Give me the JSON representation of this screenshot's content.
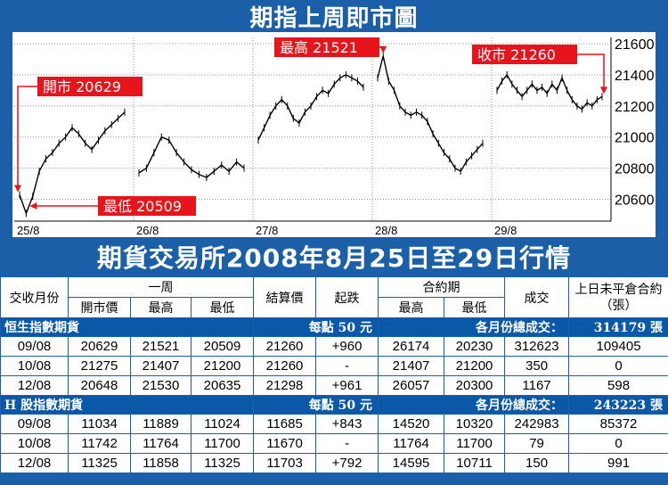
{
  "chart_title": "期指上周即市圖",
  "chart_data": {
    "type": "line",
    "y_ticks": [
      20600,
      20800,
      21000,
      21200,
      21400,
      21600
    ],
    "ylim": [
      20460,
      21640
    ],
    "x_ticks": [
      "25/8",
      "26/8",
      "27/8",
      "28/8",
      "29/8"
    ],
    "grid": true,
    "days": [
      {
        "label": "25/8",
        "points": [
          20629,
          20509,
          20620,
          20780,
          20860,
          20900,
          20960,
          21000,
          21060,
          21020,
          20960,
          20920,
          20980,
          21040,
          21080,
          21120,
          21160
        ]
      },
      {
        "label": "26/8",
        "points": [
          20770,
          20800,
          20900,
          21000,
          20980,
          20900,
          20840,
          20790,
          20760,
          20740,
          20780,
          20820,
          20780,
          20840,
          20800
        ]
      },
      {
        "label": "27/8",
        "points": [
          20980,
          21060,
          21140,
          21200,
          21240,
          21200,
          21120,
          21090,
          21160,
          21200,
          21260,
          21300,
          21280,
          21340,
          21380,
          21400,
          21380,
          21360,
          21320
        ]
      },
      {
        "label": "28/8",
        "points": [
          21380,
          21521,
          21360,
          21300,
          21200,
          21160,
          21140,
          21160,
          21140,
          21100,
          21020,
          20960,
          20900,
          20860,
          20800,
          20780,
          20840,
          20880,
          20920,
          20960
        ]
      },
      {
        "label": "29/8",
        "points": [
          21300,
          21360,
          21400,
          21340,
          21300,
          21260,
          21300,
          21340,
          21300,
          21320,
          21280,
          21340,
          21300,
          21380,
          21300,
          21240,
          21200,
          21180,
          21220,
          21200,
          21240,
          21260
        ]
      }
    ],
    "annotations": [
      {
        "text": "開市 20629",
        "value": 20629
      },
      {
        "text": "最低 20509",
        "value": 20509
      },
      {
        "text": "最高 21521",
        "value": 21521
      },
      {
        "text": "收市 21260",
        "value": 21260
      }
    ],
    "line_color": "#000000",
    "label_color": "#e8141b"
  },
  "table_title": "期貨交易所2008年8月25日至29日行情",
  "table": {
    "headers": {
      "month": "交收月份",
      "week": "一周",
      "open": "開市價",
      "high": "最高",
      "low": "最低",
      "settle": "結算價",
      "change": "起跌",
      "contract": "合約期",
      "c_high": "最高",
      "c_low": "最低",
      "volume": "成交",
      "oi": "上日未平倉合約（張）"
    },
    "sections": [
      {
        "name": "恒生指數期貨",
        "per_point": "每點 50 元",
        "total_label": "各月份總成交：",
        "total_value": "314179 張",
        "rows": [
          [
            "09/08",
            "20629",
            "21521",
            "20509",
            "21260",
            "+960",
            "26174",
            "20230",
            "312623",
            "109405"
          ],
          [
            "10/08",
            "21275",
            "21407",
            "21200",
            "21260",
            "-",
            "21407",
            "21200",
            "350",
            "0"
          ],
          [
            "12/08",
            "20648",
            "21530",
            "20635",
            "21298",
            "+961",
            "26057",
            "20300",
            "1167",
            "598"
          ]
        ]
      },
      {
        "name": "H 股指數期貨",
        "per_point": "每點 50 元",
        "total_label": "各月份總成交：",
        "total_value": "243223 張",
        "rows": [
          [
            "09/08",
            "11034",
            "11889",
            "11024",
            "11685",
            "+843",
            "14520",
            "10320",
            "242983",
            "85372"
          ],
          [
            "10/08",
            "11742",
            "11764",
            "11700",
            "11670",
            "-",
            "11764",
            "11700",
            "79",
            "0"
          ],
          [
            "12/08",
            "11325",
            "11858",
            "11325",
            "11703",
            "+792",
            "14595",
            "10711",
            "150",
            "991"
          ]
        ]
      }
    ]
  }
}
